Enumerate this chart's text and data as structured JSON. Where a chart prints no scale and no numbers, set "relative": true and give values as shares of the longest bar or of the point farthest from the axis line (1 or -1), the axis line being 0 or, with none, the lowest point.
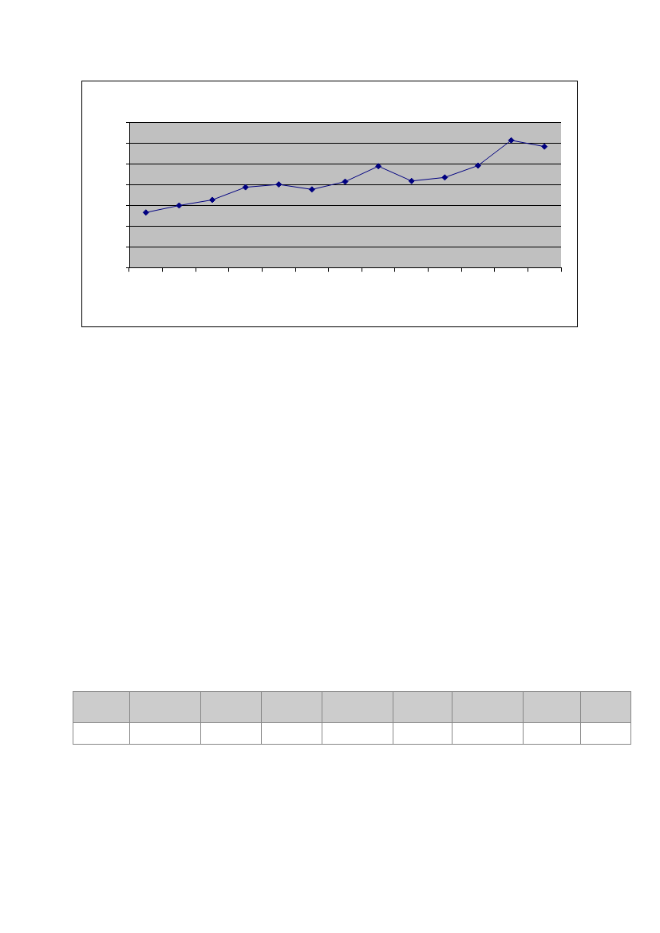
{
  "chart_data": {
    "type": "line",
    "relative": true,
    "categories": [
      null,
      null,
      null,
      null,
      null,
      null,
      null,
      null,
      null,
      null,
      null,
      null,
      null
    ],
    "series": [
      {
        "color": "#000080",
        "values": [
          0.434,
          0.489,
          0.533,
          0.632,
          0.654,
          0.615,
          0.676,
          0.797,
          0.681,
          0.709,
          0.802,
          1,
          0.951
        ]
      }
    ],
    "marker": "diamond",
    "grid": "y",
    "legend": false
  }
}
